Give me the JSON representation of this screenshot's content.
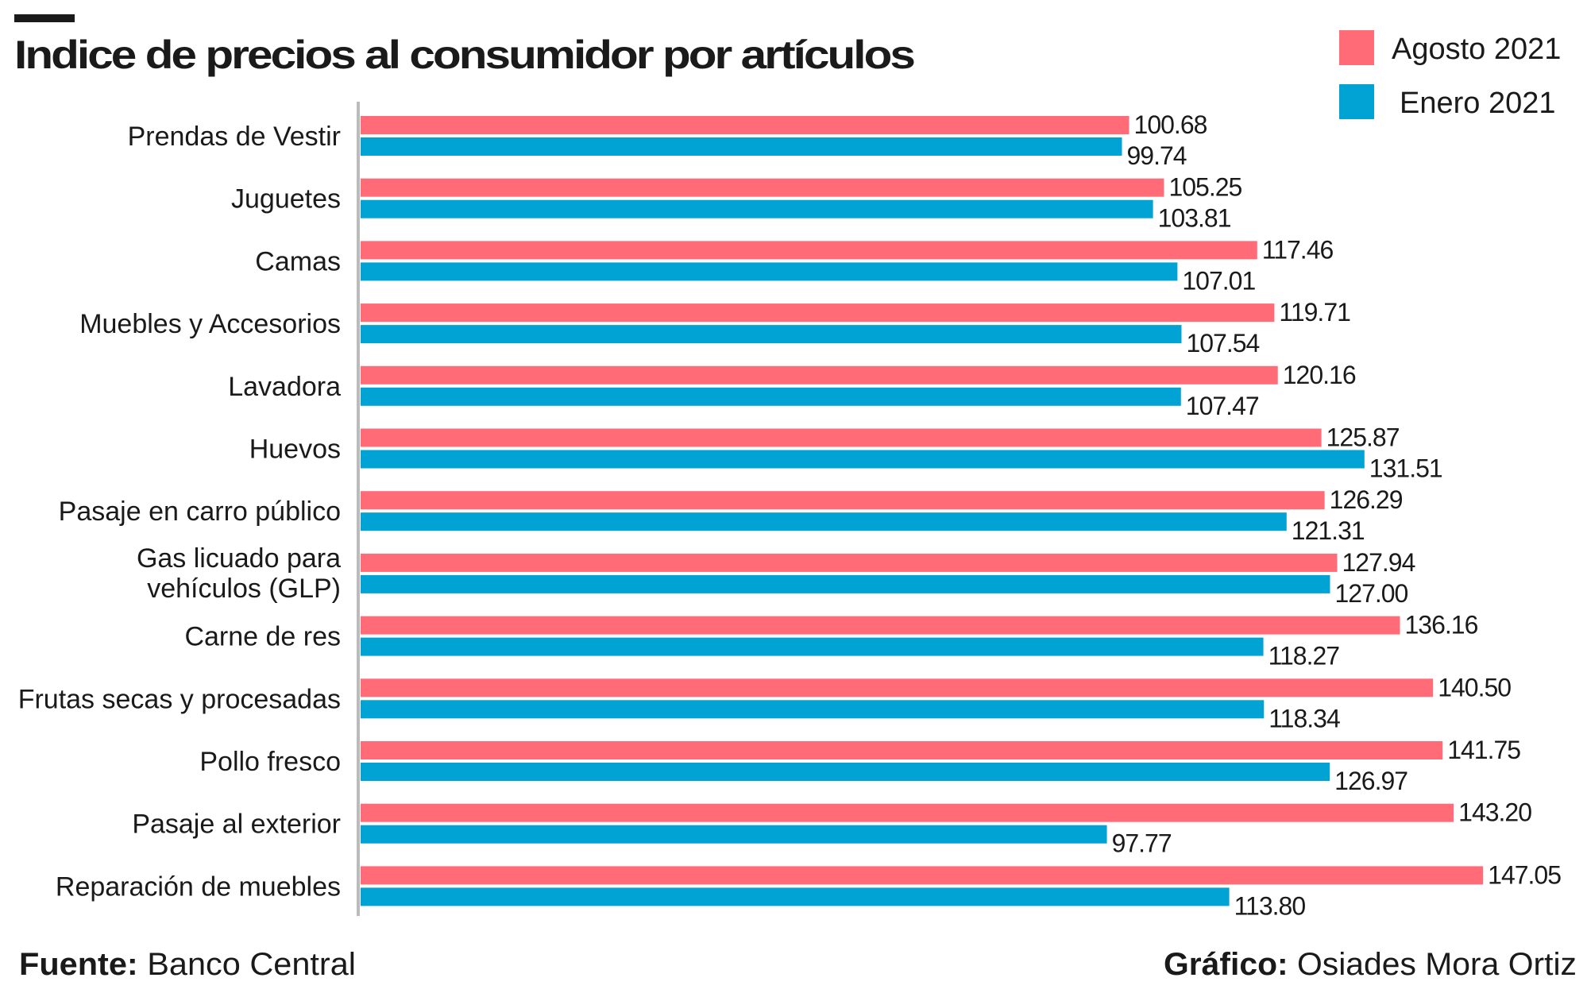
{
  "chart_data": {
    "type": "bar",
    "orientation": "horizontal",
    "title": "Indice de precios al consumidor por artículos",
    "categories": [
      "Prendas de Vestir",
      "Juguetes",
      "Camas",
      "Muebles y Accesorios",
      "Lavadora",
      "Huevos",
      "Pasaje en carro público",
      "Gas licuado para|vehículos (GLP)",
      "Carne de res",
      "Frutas secas y procesadas",
      "Pollo fresco",
      "Pasaje al exterior",
      "Reparación de muebles"
    ],
    "series": [
      {
        "name": "Agosto 2021",
        "color": "#ff6b77",
        "values": [
          100.68,
          105.25,
          117.46,
          119.71,
          120.16,
          125.87,
          126.29,
          127.94,
          136.16,
          140.5,
          141.75,
          143.2,
          147.05
        ],
        "labels": [
          "100.68",
          "105.25",
          "117.46",
          "119.71",
          "120.16",
          "125.87",
          "126.29",
          "127.94",
          "136.16",
          "140.50",
          "141.75",
          "143.20",
          "147.05"
        ]
      },
      {
        "name": "Enero 2021",
        "color": "#00a3d4",
        "values": [
          99.74,
          103.81,
          107.01,
          107.54,
          107.47,
          131.51,
          121.31,
          127.0,
          118.27,
          118.34,
          126.97,
          97.77,
          113.8
        ],
        "labels": [
          "99.74",
          "103.81",
          "107.01",
          "107.54",
          "107.47",
          "131.51",
          "121.31",
          "127.00",
          "118.27",
          "118.34",
          "126.97",
          "97.77",
          "113.80"
        ]
      }
    ],
    "xlim": [
      0,
      150
    ],
    "grid": false,
    "legend": "top-right",
    "axis_color": "#bbbbbb"
  },
  "footer": {
    "source_label": "Fuente:",
    "source_value": " Banco Central",
    "credit_label": "Gráfico:",
    "credit_value": " Osiades Mora Ortiz"
  }
}
